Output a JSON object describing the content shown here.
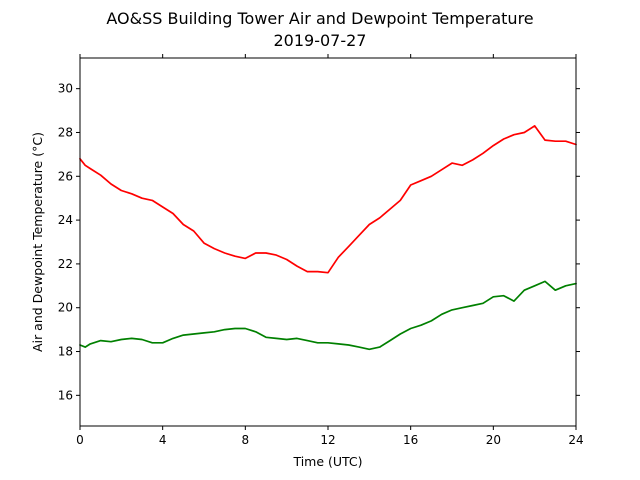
{
  "chart_data": {
    "type": "line",
    "title_line1": "AO&SS Building Tower Air and Dewpoint Temperature",
    "title_line2": "2019-07-27",
    "xlabel": "Time (UTC)",
    "ylabel": "Air and Dewpoint Temperature (°C)",
    "xlim": [
      0,
      24
    ],
    "ylim": [
      14.6,
      31.4
    ],
    "xticks": [
      0,
      4,
      8,
      12,
      16,
      20,
      24
    ],
    "yticks": [
      16,
      18,
      20,
      22,
      24,
      26,
      28,
      30
    ],
    "grid": false,
    "legend": "none",
    "series": [
      {
        "color": "#ff0000",
        "x": [
          0,
          0.25,
          0.5,
          1,
          1.5,
          2,
          2.5,
          3,
          3.5,
          4,
          4.5,
          5,
          5.5,
          6,
          6.5,
          7,
          7.5,
          8,
          8.5,
          9,
          9.5,
          10,
          10.5,
          11,
          11.5,
          12,
          12.5,
          13,
          13.5,
          14,
          14.5,
          15,
          15.5,
          16,
          16.5,
          17,
          17.5,
          18,
          18.5,
          19,
          19.5,
          20,
          20.5,
          21,
          21.5,
          22,
          22.5,
          23,
          23.5,
          24
        ],
        "y": [
          26.8,
          26.5,
          26.35,
          26.05,
          25.65,
          25.35,
          25.2,
          25.0,
          24.9,
          24.6,
          24.3,
          23.8,
          23.5,
          22.95,
          22.7,
          22.5,
          22.35,
          22.25,
          22.5,
          22.5,
          22.4,
          22.2,
          21.9,
          21.65,
          21.65,
          21.6,
          22.3,
          22.8,
          23.3,
          23.8,
          24.1,
          24.5,
          24.9,
          25.6,
          25.8,
          26.0,
          26.3,
          26.6,
          26.5,
          26.75,
          27.05,
          27.4,
          27.7,
          27.9,
          28.0,
          28.3,
          27.65,
          27.6,
          27.6,
          27.45
        ]
      },
      {
        "color": "#008000",
        "x": [
          0,
          0.25,
          0.5,
          1,
          1.5,
          2,
          2.5,
          3,
          3.5,
          4,
          4.5,
          5,
          5.5,
          6,
          6.5,
          7,
          7.5,
          8,
          8.5,
          9,
          9.5,
          10,
          10.5,
          11,
          11.5,
          12,
          12.5,
          13,
          13.5,
          14,
          14.5,
          15,
          15.5,
          16,
          16.5,
          17,
          17.5,
          18,
          18.5,
          19,
          19.5,
          20,
          20.5,
          21,
          21.5,
          22,
          22.5,
          23,
          23.5,
          24
        ],
        "y": [
          18.3,
          18.2,
          18.35,
          18.5,
          18.45,
          18.55,
          18.6,
          18.55,
          18.4,
          18.4,
          18.6,
          18.75,
          18.8,
          18.85,
          18.9,
          19.0,
          19.05,
          19.05,
          18.9,
          18.65,
          18.6,
          18.55,
          18.6,
          18.5,
          18.4,
          18.4,
          18.35,
          18.3,
          18.2,
          18.1,
          18.2,
          18.5,
          18.8,
          19.05,
          19.2,
          19.4,
          19.7,
          19.9,
          20.0,
          20.1,
          20.2,
          20.5,
          20.55,
          20.3,
          20.8,
          21.0,
          21.2,
          20.8,
          21.0,
          21.1
        ]
      }
    ]
  }
}
